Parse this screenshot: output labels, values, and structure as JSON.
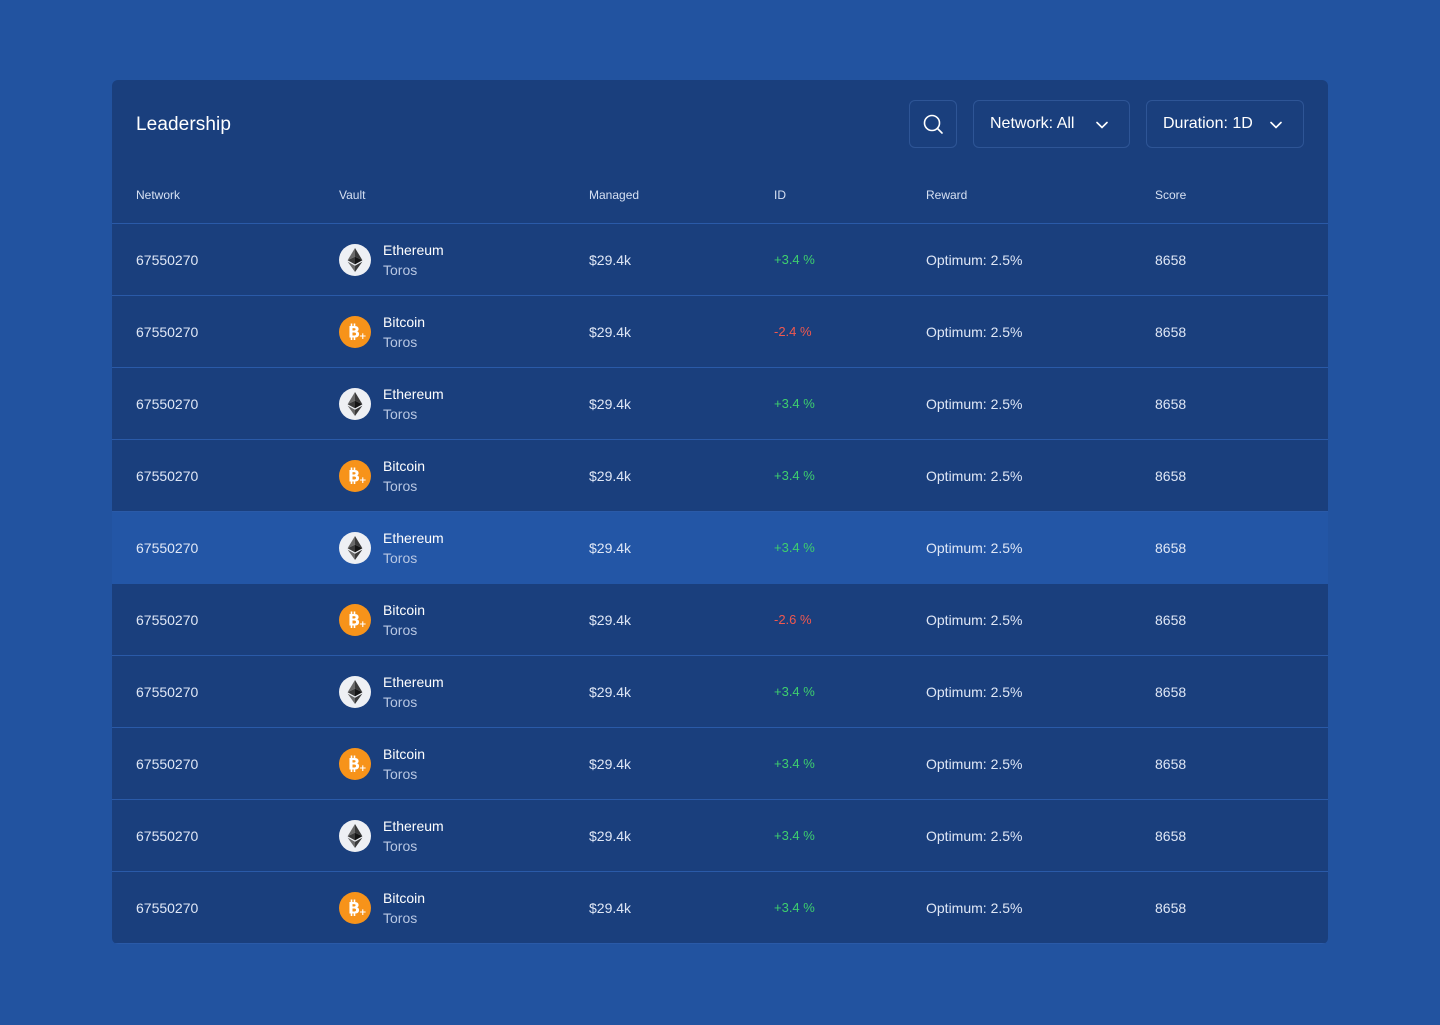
{
  "header": {
    "title": "Leadership",
    "network_filter": "Network: All",
    "duration_filter": "Duration: 1D"
  },
  "columns": [
    "Network",
    "Vault",
    "Managed",
    "ID",
    "Reward",
    "Score"
  ],
  "colors": {
    "background": "#2253a0",
    "panel": "#1a3f7d",
    "highlight_row": "#2356a6",
    "positive": "#3ecf6e",
    "negative": "#f0584f",
    "bitcoin": "#f7931a"
  },
  "rows": [
    {
      "network": "67550270",
      "coin": "eth",
      "vault_name": "Ethereum",
      "vault_sub": "Toros",
      "managed": "$29.4k",
      "id": "+3.4 %",
      "trend": "pos",
      "reward": "Optimum: 2.5%",
      "score": "8658",
      "highlighted": false
    },
    {
      "network": "67550270",
      "coin": "btc",
      "vault_name": "Bitcoin",
      "vault_sub": "Toros",
      "managed": "$29.4k",
      "id": "-2.4 %",
      "trend": "neg",
      "reward": "Optimum: 2.5%",
      "score": "8658",
      "highlighted": false
    },
    {
      "network": "67550270",
      "coin": "eth",
      "vault_name": "Ethereum",
      "vault_sub": "Toros",
      "managed": "$29.4k",
      "id": "+3.4 %",
      "trend": "pos",
      "reward": "Optimum: 2.5%",
      "score": "8658",
      "highlighted": false
    },
    {
      "network": "67550270",
      "coin": "btc",
      "vault_name": "Bitcoin",
      "vault_sub": "Toros",
      "managed": "$29.4k",
      "id": "+3.4 %",
      "trend": "pos",
      "reward": "Optimum: 2.5%",
      "score": "8658",
      "highlighted": false
    },
    {
      "network": "67550270",
      "coin": "eth",
      "vault_name": "Ethereum",
      "vault_sub": "Toros",
      "managed": "$29.4k",
      "id": "+3.4 %",
      "trend": "pos",
      "reward": "Optimum: 2.5%",
      "score": "8658",
      "highlighted": true
    },
    {
      "network": "67550270",
      "coin": "btc",
      "vault_name": "Bitcoin",
      "vault_sub": "Toros",
      "managed": "$29.4k",
      "id": "-2.6 %",
      "trend": "neg",
      "reward": "Optimum: 2.5%",
      "score": "8658",
      "highlighted": false
    },
    {
      "network": "67550270",
      "coin": "eth",
      "vault_name": "Ethereum",
      "vault_sub": "Toros",
      "managed": "$29.4k",
      "id": "+3.4 %",
      "trend": "pos",
      "reward": "Optimum: 2.5%",
      "score": "8658",
      "highlighted": false
    },
    {
      "network": "67550270",
      "coin": "btc",
      "vault_name": "Bitcoin",
      "vault_sub": "Toros",
      "managed": "$29.4k",
      "id": "+3.4 %",
      "trend": "pos",
      "reward": "Optimum: 2.5%",
      "score": "8658",
      "highlighted": false
    },
    {
      "network": "67550270",
      "coin": "eth",
      "vault_name": "Ethereum",
      "vault_sub": "Toros",
      "managed": "$29.4k",
      "id": "+3.4 %",
      "trend": "pos",
      "reward": "Optimum: 2.5%",
      "score": "8658",
      "highlighted": false
    },
    {
      "network": "67550270",
      "coin": "btc",
      "vault_name": "Bitcoin",
      "vault_sub": "Toros",
      "managed": "$29.4k",
      "id": "+3.4 %",
      "trend": "pos",
      "reward": "Optimum: 2.5%",
      "score": "8658",
      "highlighted": false
    }
  ]
}
